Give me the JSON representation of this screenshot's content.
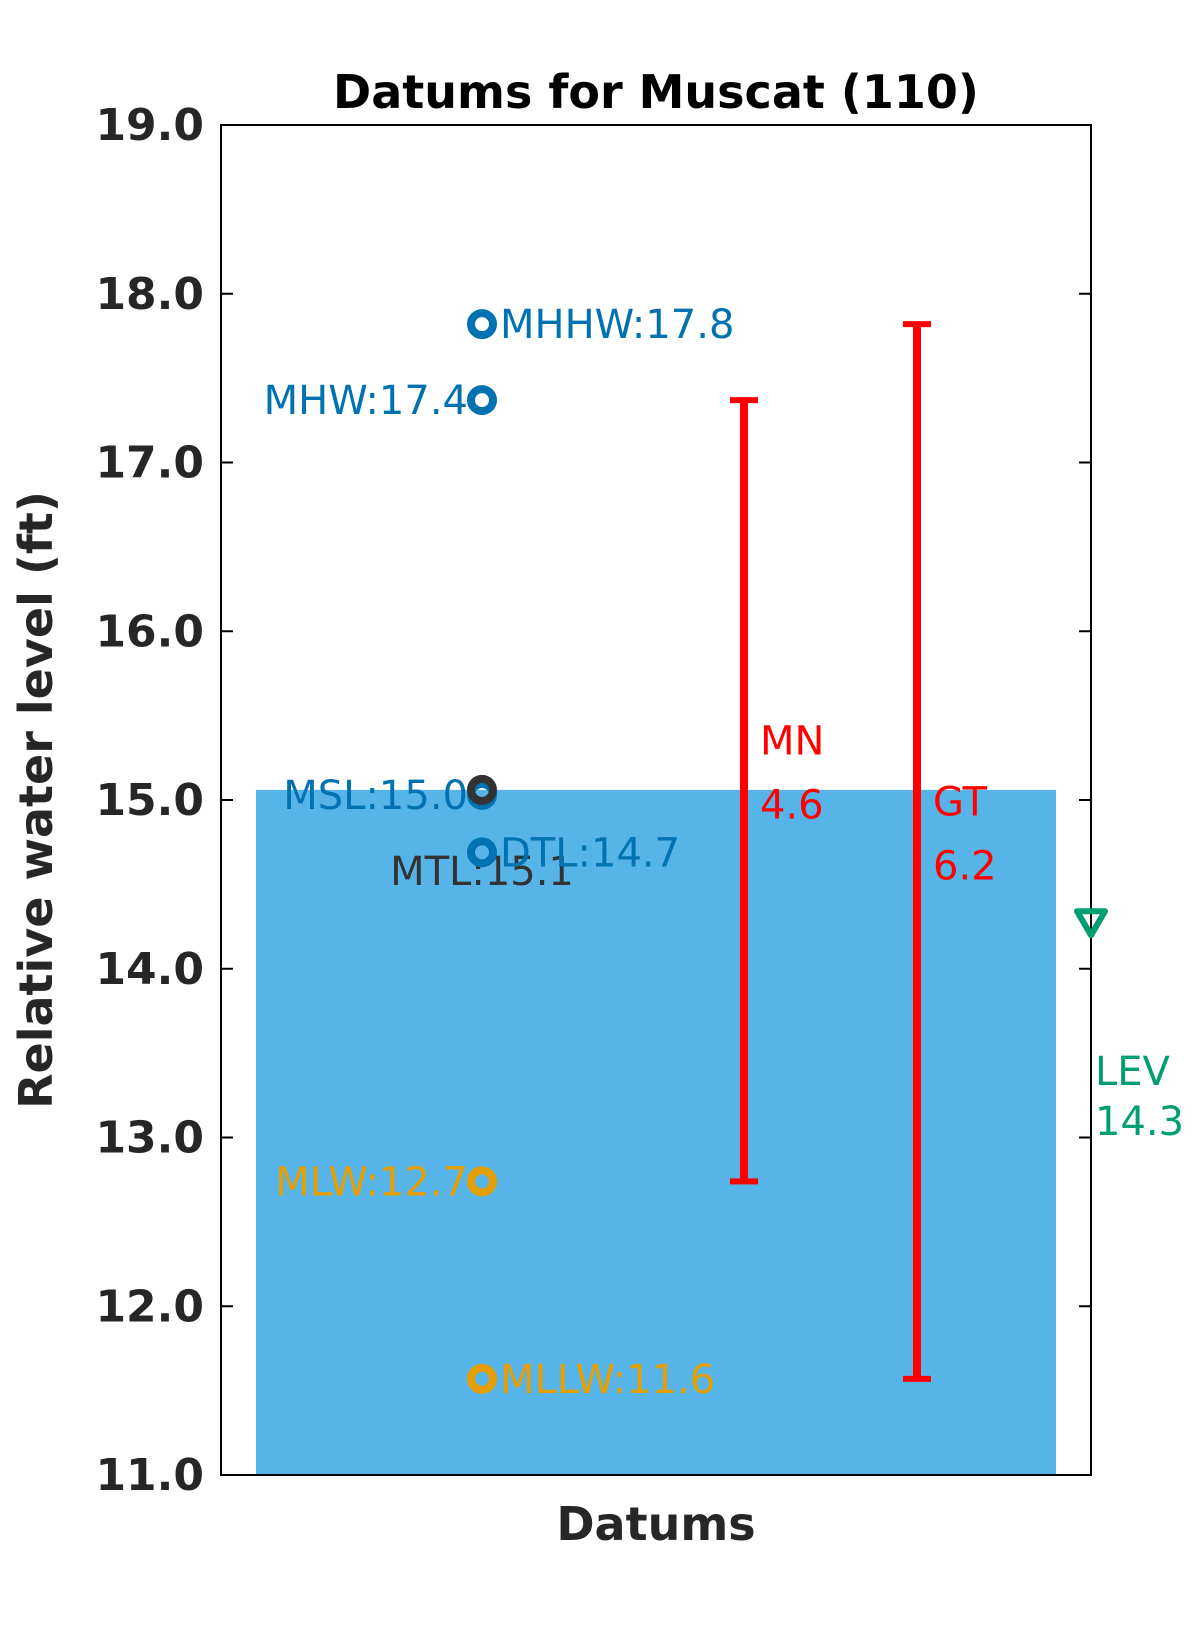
{
  "chart_data": {
    "type": "scatter",
    "title": "Datums for Muscat (110)",
    "xlabel": "Datums",
    "ylabel": "Relative water level (ft)",
    "ylim": [
      11.0,
      19.0
    ],
    "yticks": [
      "11.0",
      "12.0",
      "13.0",
      "14.0",
      "15.0",
      "16.0",
      "17.0",
      "18.0",
      "19.0"
    ],
    "grid": false,
    "water_fill": {
      "top": 15.06,
      "color": "#56b4e9"
    },
    "datums": [
      {
        "name": "MHHW",
        "value": 17.82,
        "label": "MHHW:17.8",
        "color": "#0072b2",
        "label_side": "right"
      },
      {
        "name": "MHW",
        "value": 17.37,
        "label": "MHW:17.4",
        "color": "#0072b2",
        "label_side": "left"
      },
      {
        "name": "MSL",
        "value": 15.03,
        "label": "MSL:15.0",
        "color": "#0072b2",
        "label_side": "left"
      },
      {
        "name": "MTL",
        "value": 15.06,
        "label": "MTL:15.1",
        "color": "#333333",
        "label_side": "below"
      },
      {
        "name": "DTL",
        "value": 14.69,
        "label": "DTL:14.7",
        "color": "#0072b2",
        "label_side": "right"
      },
      {
        "name": "MLW",
        "value": 12.74,
        "label": "MLW:12.7",
        "color": "#e69f00",
        "label_side": "left"
      },
      {
        "name": "MLLW",
        "value": 11.57,
        "label": "MLLW:11.6",
        "color": "#e69f00",
        "label_side": "right"
      }
    ],
    "ranges": [
      {
        "name": "MN",
        "low": 12.74,
        "high": 17.37,
        "label_name": "MN",
        "label_value": "4.6",
        "color": "#ff0000"
      },
      {
        "name": "GT",
        "low": 11.57,
        "high": 17.82,
        "label_name": "GT",
        "label_value": "6.2",
        "color": "#ff0000"
      }
    ],
    "level": {
      "name": "LEV",
      "value": 14.27,
      "label_name": "LEV",
      "label_value": "14.3",
      "color": "#009e73"
    }
  }
}
